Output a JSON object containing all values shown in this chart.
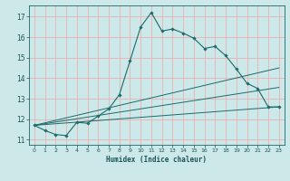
{
  "title": "",
  "xlabel": "Humidex (Indice chaleur)",
  "bg_color": "#cde8e8",
  "grid_color": "#e8b0b0",
  "line_color": "#1a6b6b",
  "xlim": [
    -0.5,
    23.5
  ],
  "ylim": [
    10.75,
    17.55
  ],
  "yticks": [
    11,
    12,
    13,
    14,
    15,
    16,
    17
  ],
  "xticks": [
    0,
    1,
    2,
    3,
    4,
    5,
    6,
    7,
    8,
    9,
    10,
    11,
    12,
    13,
    14,
    15,
    16,
    17,
    18,
    19,
    20,
    21,
    22,
    23
  ],
  "main_line": {
    "x": [
      0,
      1,
      2,
      3,
      4,
      5,
      6,
      7,
      8,
      9,
      10,
      11,
      12,
      13,
      14,
      15,
      16,
      17,
      18,
      19,
      20,
      21,
      22,
      23
    ],
    "y": [
      11.7,
      11.45,
      11.25,
      11.2,
      11.85,
      11.8,
      12.15,
      12.5,
      13.2,
      14.85,
      16.5,
      17.2,
      16.3,
      16.4,
      16.2,
      15.95,
      15.45,
      15.55,
      15.1,
      14.45,
      13.75,
      13.5,
      12.6,
      12.6
    ]
  },
  "diag_lines": [
    {
      "x": [
        0,
        23
      ],
      "y": [
        11.7,
        14.5
      ]
    },
    {
      "x": [
        0,
        23
      ],
      "y": [
        11.7,
        13.55
      ]
    },
    {
      "x": [
        0,
        23
      ],
      "y": [
        11.7,
        12.6
      ]
    }
  ]
}
